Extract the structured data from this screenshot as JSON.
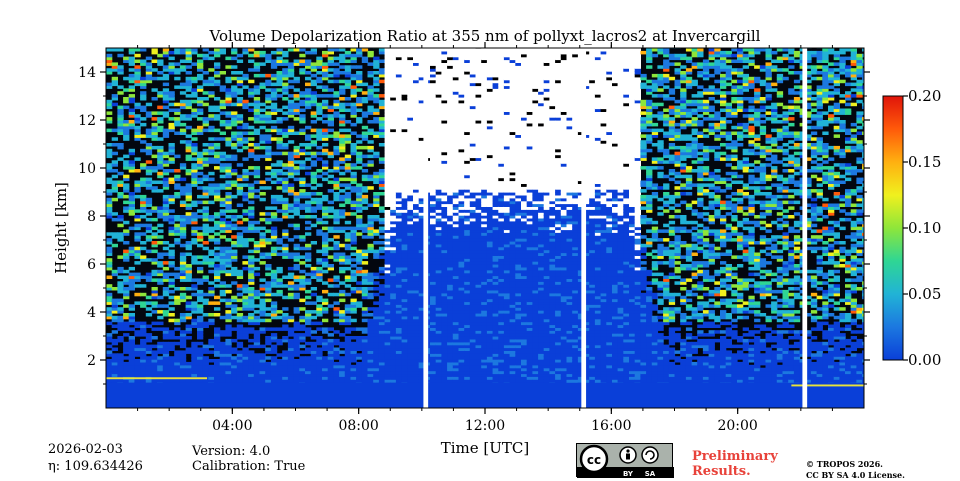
{
  "chart_data": {
    "type": "heatmap",
    "title": "Volume Depolarization Ratio at 355 nm of pollyxt_lacros2 at Invercargill",
    "xlabel": "Time [UTC]",
    "ylabel": "Height [km]",
    "xlim": [
      0,
      24
    ],
    "ylim": [
      0,
      15
    ],
    "x_ticks": [
      {
        "value": 4,
        "label": "04:00"
      },
      {
        "value": 8,
        "label": "08:00"
      },
      {
        "value": 12,
        "label": "12:00"
      },
      {
        "value": 16,
        "label": "16:00"
      },
      {
        "value": 20,
        "label": "20:00"
      }
    ],
    "y_ticks": [
      {
        "value": 2,
        "label": "2"
      },
      {
        "value": 4,
        "label": "4"
      },
      {
        "value": 6,
        "label": "6"
      },
      {
        "value": 8,
        "label": "8"
      },
      {
        "value": 10,
        "label": "10"
      },
      {
        "value": 12,
        "label": "12"
      },
      {
        "value": 14,
        "label": "14"
      }
    ],
    "colorbar": {
      "min": 0.0,
      "max": 0.2,
      "ticks": [
        {
          "value": 0.0,
          "label": "0.00"
        },
        {
          "value": 0.05,
          "label": "0.05"
        },
        {
          "value": 0.1,
          "label": "0.10"
        },
        {
          "value": 0.15,
          "label": "0.15"
        },
        {
          "value": 0.2,
          "label": "0.20"
        }
      ],
      "colors": [
        "#0a3fd8",
        "#1c78e0",
        "#21b3d6",
        "#2fd694",
        "#8ee63a",
        "#f0f01e",
        "#ffb010",
        "#ff5a0a",
        "#e0140a"
      ]
    },
    "no_data_periods_hours": [
      [
        10.05,
        10.2
      ],
      [
        15.05,
        15.2
      ],
      [
        22.05,
        22.2
      ]
    ],
    "gap_color": "#ffffff",
    "near_surface_layer_top_km": [
      {
        "start": 0.0,
        "end": 3.2,
        "top": 1.2
      },
      {
        "start": 21.7,
        "end": 24.0,
        "top": 0.9
      }
    ]
  },
  "footer": {
    "date": "2026-02-03",
    "eta": "η: 109.634426",
    "version": "Version: 4.0",
    "calibration": "Calibration: True",
    "license_logo": {
      "cc": "cc",
      "by": "BY",
      "sa": "SA"
    },
    "preliminary": [
      "Preliminary",
      "Results."
    ],
    "copyright": [
      "© TROPOS 2026.",
      "CC BY SA 4.0 License."
    ]
  }
}
